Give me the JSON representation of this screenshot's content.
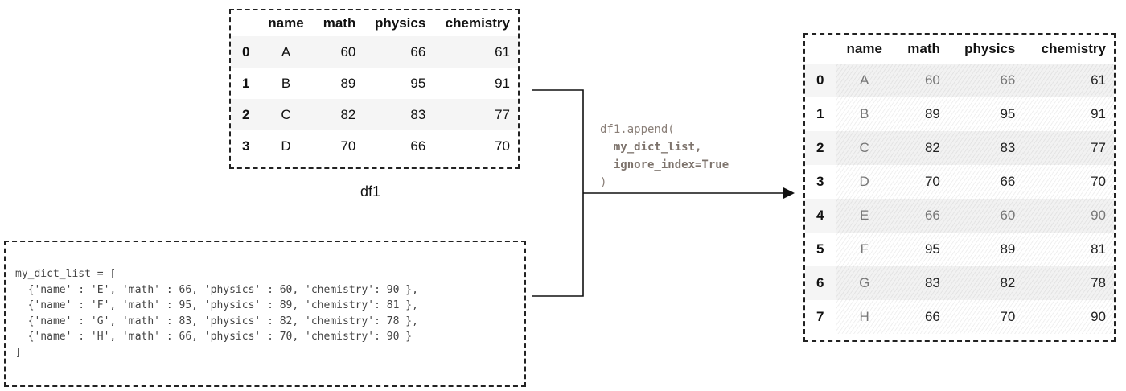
{
  "columns": [
    "name",
    "math",
    "physics",
    "chemistry"
  ],
  "df1": {
    "caption": "df1",
    "rows": [
      {
        "index": "0",
        "name": "A",
        "math": "60",
        "physics": "66",
        "chemistry": "61"
      },
      {
        "index": "1",
        "name": "B",
        "math": "89",
        "physics": "95",
        "chemistry": "91"
      },
      {
        "index": "2",
        "name": "C",
        "math": "82",
        "physics": "83",
        "chemistry": "77"
      },
      {
        "index": "3",
        "name": "D",
        "math": "70",
        "physics": "66",
        "chemistry": "70"
      }
    ]
  },
  "dict_list": {
    "lines": [
      "my_dict_list = [",
      "  {'name' : 'E', 'math' : 66, 'physics' : 60, 'chemistry': 90 },",
      "  {'name' : 'F', 'math' : 95, 'physics' : 89, 'chemistry': 81 },",
      "  {'name' : 'G', 'math' : 83, 'physics' : 82, 'chemistry': 78 },",
      "  {'name' : 'H', 'math' : 66, 'physics' : 70, 'chemistry': 90 }",
      "]"
    ]
  },
  "operation": {
    "line1": "df1.append(",
    "arg1": "my_dict_list,",
    "arg2": "ignore_index=True",
    "line4": ")"
  },
  "result": {
    "rows": [
      {
        "index": "0",
        "name": "A",
        "math": "60",
        "physics": "66",
        "chemistry": "61"
      },
      {
        "index": "1",
        "name": "B",
        "math": "89",
        "physics": "95",
        "chemistry": "91"
      },
      {
        "index": "2",
        "name": "C",
        "math": "82",
        "physics": "83",
        "chemistry": "77"
      },
      {
        "index": "3",
        "name": "D",
        "math": "70",
        "physics": "66",
        "chemistry": "70"
      },
      {
        "index": "4",
        "name": "E",
        "math": "66",
        "physics": "60",
        "chemistry": "90"
      },
      {
        "index": "5",
        "name": "F",
        "math": "95",
        "physics": "89",
        "chemistry": "81"
      },
      {
        "index": "6",
        "name": "G",
        "math": "83",
        "physics": "82",
        "chemistry": "78"
      },
      {
        "index": "7",
        "name": "H",
        "math": "66",
        "physics": "70",
        "chemistry": "90"
      }
    ]
  }
}
